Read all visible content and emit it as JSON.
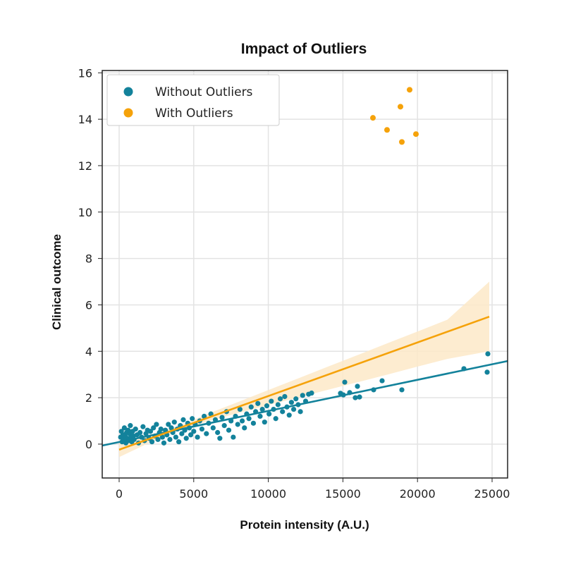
{
  "chart_data": {
    "type": "scatter",
    "title": "Impact of Outliers",
    "xlabel": "Protein intensity (A.U.)",
    "ylabel": "Clinical outcome",
    "xlim": [
      -1134,
      26040
    ],
    "ylim": [
      -1.46,
      16.1
    ],
    "xticks": [
      0,
      5000,
      10000,
      15000,
      20000,
      25000
    ],
    "yticks": [
      0,
      2,
      4,
      6,
      8,
      10,
      12,
      14,
      16
    ],
    "grid": true,
    "legend_position": "top-left",
    "colors": {
      "without": "#13829b",
      "with": "#f5a20a",
      "band": "#fde9c8"
    },
    "series": [
      {
        "name": "Without Outliers",
        "points": [
          [
            100,
            0.3
          ],
          [
            150,
            0.55
          ],
          [
            200,
            0.1
          ],
          [
            250,
            0.4
          ],
          [
            300,
            0.2
          ],
          [
            350,
            0.7
          ],
          [
            400,
            0.35
          ],
          [
            450,
            0.05
          ],
          [
            500,
            0.5
          ],
          [
            550,
            0.25
          ],
          [
            600,
            0.6
          ],
          [
            650,
            0.15
          ],
          [
            700,
            0.45
          ],
          [
            750,
            0.8
          ],
          [
            800,
            0.3
          ],
          [
            850,
            0.1
          ],
          [
            900,
            0.55
          ],
          [
            950,
            0.35
          ],
          [
            1000,
            0.2
          ],
          [
            1100,
            0.65
          ],
          [
            1200,
            0.4
          ],
          [
            1300,
            0.05
          ],
          [
            1400,
            0.5
          ],
          [
            1500,
            0.3
          ],
          [
            1600,
            0.75
          ],
          [
            1700,
            0.15
          ],
          [
            1800,
            0.45
          ],
          [
            1900,
            0.6
          ],
          [
            2000,
            0.25
          ],
          [
            2100,
            0.55
          ],
          [
            2200,
            0.1
          ],
          [
            2300,
            0.7
          ],
          [
            2400,
            0.35
          ],
          [
            2500,
            0.85
          ],
          [
            2600,
            0.2
          ],
          [
            2700,
            0.5
          ],
          [
            2800,
            0.65
          ],
          [
            2900,
            0.3
          ],
          [
            3000,
            0.05
          ],
          [
            3100,
            0.6
          ],
          [
            3200,
            0.4
          ],
          [
            3300,
            0.85
          ],
          [
            3400,
            0.2
          ],
          [
            3500,
            0.7
          ],
          [
            3600,
            0.5
          ],
          [
            3700,
            0.95
          ],
          [
            3800,
            0.3
          ],
          [
            3900,
            0.65
          ],
          [
            4000,
            0.1
          ],
          [
            4100,
            0.8
          ],
          [
            4200,
            0.45
          ],
          [
            4300,
            1.05
          ],
          [
            4400,
            0.6
          ],
          [
            4500,
            0.25
          ],
          [
            4600,
            0.9
          ],
          [
            4700,
            0.7
          ],
          [
            4800,
            0.4
          ],
          [
            4900,
            1.1
          ],
          [
            5000,
            0.55
          ],
          [
            5100,
            0.85
          ],
          [
            5250,
            0.3
          ],
          [
            5400,
            1.0
          ],
          [
            5550,
            0.65
          ],
          [
            5700,
            1.2
          ],
          [
            5850,
            0.45
          ],
          [
            6000,
            0.9
          ],
          [
            6150,
            1.3
          ],
          [
            6300,
            0.7
          ],
          [
            6450,
            1.05
          ],
          [
            6600,
            0.5
          ],
          [
            6750,
            0.25
          ],
          [
            6900,
            1.15
          ],
          [
            7050,
            0.8
          ],
          [
            7200,
            1.4
          ],
          [
            7350,
            0.6
          ],
          [
            7500,
            1.0
          ],
          [
            7650,
            0.3
          ],
          [
            7800,
            1.2
          ],
          [
            7950,
            0.85
          ],
          [
            8100,
            1.5
          ],
          [
            8250,
            1.0
          ],
          [
            8400,
            0.7
          ],
          [
            8550,
            1.3
          ],
          [
            8700,
            1.1
          ],
          [
            8850,
            1.6
          ],
          [
            9000,
            0.9
          ],
          [
            9150,
            1.4
          ],
          [
            9300,
            1.75
          ],
          [
            9450,
            1.2
          ],
          [
            9600,
            1.5
          ],
          [
            9750,
            0.95
          ],
          [
            9900,
            1.65
          ],
          [
            10050,
            1.3
          ],
          [
            10200,
            1.85
          ],
          [
            10350,
            1.5
          ],
          [
            10500,
            1.1
          ],
          [
            10650,
            1.7
          ],
          [
            10800,
            1.95
          ],
          [
            10950,
            1.4
          ],
          [
            11100,
            2.05
          ],
          [
            11250,
            1.6
          ],
          [
            11400,
            1.25
          ],
          [
            11550,
            1.8
          ],
          [
            11700,
            1.5
          ],
          [
            11850,
            1.95
          ],
          [
            12000,
            1.7
          ],
          [
            12150,
            1.4
          ],
          [
            12300,
            2.1
          ],
          [
            12500,
            1.85
          ],
          [
            12700,
            2.15
          ],
          [
            12900,
            2.2
          ],
          [
            14839,
            2.19
          ],
          [
            15030,
            2.12
          ],
          [
            15123,
            2.67
          ],
          [
            15454,
            2.22
          ],
          [
            15832,
            2.0
          ],
          [
            15974,
            2.49
          ],
          [
            16115,
            2.03
          ],
          [
            17060,
            2.34
          ],
          [
            17628,
            2.73
          ],
          [
            18951,
            2.34
          ],
          [
            23110,
            3.25
          ],
          [
            24669,
            3.1
          ],
          [
            24716,
            3.89
          ]
        ],
        "fit": {
          "slope": 0.000134,
          "intercept": 0.09,
          "x_range": [
            -1134,
            26040
          ]
        }
      },
      {
        "name": "With Outliers",
        "points": [
          [
            17013,
            14.06
          ],
          [
            17958,
            13.54
          ],
          [
            18856,
            14.54
          ],
          [
            18951,
            13.02
          ],
          [
            19471,
            15.27
          ],
          [
            19896,
            13.36
          ]
        ],
        "fit": {
          "slope": 0.000231,
          "intercept": -0.24,
          "x_range": [
            0,
            24811
          ]
        },
        "confidence_band": {
          "x": [
            0,
            2000,
            4000,
            6000,
            8000,
            10000,
            12000,
            14000,
            16000,
            18000,
            20000,
            22000,
            24811
          ],
          "lower": [
            -0.56,
            0.05,
            0.58,
            1.0,
            1.34,
            1.68,
            2.01,
            2.34,
            2.67,
            3.0,
            3.34,
            3.67,
            4.0
          ],
          "upper": [
            0.08,
            0.39,
            0.78,
            1.32,
            1.82,
            2.33,
            2.83,
            3.34,
            3.84,
            4.35,
            4.85,
            5.36,
            7.0
          ]
        }
      }
    ]
  }
}
